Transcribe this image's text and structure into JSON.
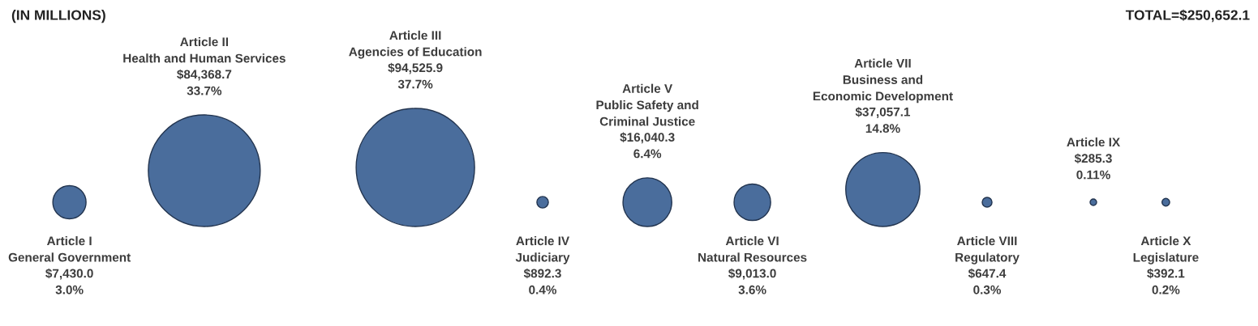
{
  "chart_data": {
    "type": "other",
    "annotations": [
      "(IN MILLIONS)",
      "TOTAL=$250,652.1"
    ],
    "categories": [
      "Article I\nGeneral Government",
      "Article II\nHealth and Human Services",
      "Article III\nAgencies of Education",
      "Article IV\nJudiciary",
      "Article V\nPublic Safety and\nCriminal Justice",
      "Article VI\nNatural Resources",
      "Article VII\nBusiness and\nEconomic Development",
      "Article VIII\nRegulatory",
      "Article IX",
      "Article X\nLegislature"
    ],
    "values": [
      7430.0,
      84368.7,
      94525.9,
      892.3,
      16040.3,
      9013.0,
      37057.1,
      647.4,
      285.3,
      392.1
    ],
    "value_labels": [
      "$7,430.0\n3.0%",
      "$84,368.7\n33.7%",
      "$94,525.9\n37.7%",
      "$892.3\n0.4%",
      "$16,040.3\n6.4%",
      "$9,013.0\n3.6%",
      "$37,057.1\n14.8%",
      "$647.4\n0.3%",
      "$285.3\n0.11%",
      "$392.1\n0.2%"
    ],
    "color": "#4a6d9c"
  }
}
